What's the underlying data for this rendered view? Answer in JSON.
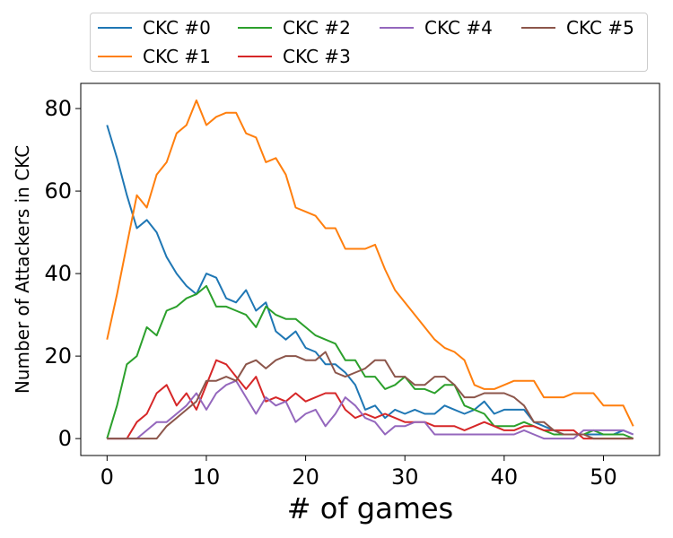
{
  "chart_data": {
    "type": "line",
    "title": "",
    "xlabel": "# of games",
    "ylabel": "Number of Attackers in CKC",
    "xlim": [
      -2.65,
      55.65
    ],
    "ylim": [
      -4.1,
      86.1
    ],
    "xticks": [
      0,
      10,
      20,
      30,
      40,
      50
    ],
    "yticks": [
      0,
      20,
      40,
      60,
      80
    ],
    "grid": false,
    "legend_position": "top",
    "x": [
      0,
      1,
      2,
      3,
      4,
      5,
      6,
      7,
      8,
      9,
      10,
      11,
      12,
      13,
      14,
      15,
      16,
      17,
      18,
      19,
      20,
      21,
      22,
      23,
      24,
      25,
      26,
      27,
      28,
      29,
      30,
      31,
      32,
      33,
      34,
      35,
      36,
      37,
      38,
      39,
      40,
      41,
      42,
      43,
      44,
      45,
      46,
      47,
      48,
      49,
      50,
      51,
      52,
      53
    ],
    "series": [
      {
        "name": "CKC #0",
        "color": "#1f77b4",
        "values": [
          76,
          68,
          59,
          51,
          53,
          50,
          44,
          40,
          37,
          35,
          40,
          39,
          34,
          33,
          36,
          31,
          33,
          26,
          24,
          26,
          22,
          21,
          18,
          18,
          16,
          13,
          7,
          8,
          5,
          7,
          6,
          7,
          6,
          6,
          8,
          7,
          6,
          7,
          9,
          6,
          7,
          7,
          7,
          4,
          3,
          2,
          1,
          1,
          1,
          1,
          1,
          1,
          2,
          1
        ]
      },
      {
        "name": "CKC #1",
        "color": "#ff7f0e",
        "values": [
          24,
          35,
          47,
          59,
          56,
          64,
          67,
          74,
          76,
          82,
          76,
          78,
          79,
          79,
          74,
          73,
          67,
          68,
          64,
          56,
          55,
          54,
          51,
          51,
          46,
          46,
          46,
          47,
          41,
          36,
          33,
          30,
          27,
          24,
          22,
          21,
          19,
          13,
          12,
          12,
          13,
          14,
          14,
          14,
          10,
          10,
          10,
          11,
          11,
          11,
          8,
          8,
          8,
          3
        ]
      },
      {
        "name": "CKC #2",
        "color": "#2ca02c",
        "values": [
          0,
          8,
          18,
          20,
          27,
          25,
          31,
          32,
          34,
          35,
          37,
          32,
          32,
          31,
          30,
          27,
          32,
          30,
          29,
          29,
          27,
          25,
          24,
          23,
          19,
          19,
          15,
          15,
          12,
          13,
          15,
          12,
          12,
          11,
          13,
          13,
          8,
          7,
          6,
          3,
          3,
          3,
          4,
          3,
          2,
          1,
          1,
          1,
          1,
          2,
          1,
          1,
          1,
          0
        ]
      },
      {
        "name": "CKC #3",
        "color": "#d62728",
        "values": [
          0,
          0,
          0,
          4,
          6,
          11,
          13,
          8,
          11,
          7,
          13,
          19,
          18,
          15,
          12,
          15,
          9,
          10,
          9,
          11,
          9,
          10,
          11,
          11,
          7,
          5,
          6,
          5,
          6,
          5,
          4,
          4,
          4,
          3,
          3,
          3,
          2,
          3,
          4,
          3,
          2,
          2,
          3,
          3,
          2,
          2,
          2,
          2,
          0,
          0,
          0,
          0,
          0,
          0
        ]
      },
      {
        "name": "CKC #4",
        "color": "#9467bd",
        "values": [
          0,
          0,
          0,
          0,
          2,
          4,
          4,
          6,
          8,
          11,
          7,
          11,
          13,
          14,
          10,
          6,
          10,
          8,
          9,
          4,
          6,
          7,
          3,
          6,
          10,
          8,
          5,
          4,
          1,
          3,
          3,
          4,
          4,
          1,
          1,
          1,
          1,
          1,
          1,
          1,
          1,
          1,
          2,
          1,
          0,
          0,
          0,
          0,
          2,
          2,
          2,
          2,
          2,
          1
        ]
      },
      {
        "name": "CKC #5",
        "color": "#8c564b",
        "values": [
          0,
          0,
          0,
          0,
          0,
          0,
          3,
          5,
          7,
          9,
          14,
          14,
          15,
          14,
          18,
          19,
          17,
          19,
          20,
          20,
          19,
          19,
          21,
          16,
          15,
          16,
          17,
          19,
          19,
          15,
          15,
          13,
          13,
          15,
          15,
          13,
          10,
          10,
          11,
          11,
          11,
          10,
          8,
          4,
          4,
          2,
          1,
          1,
          1,
          0,
          0,
          0,
          0,
          0
        ]
      }
    ]
  }
}
